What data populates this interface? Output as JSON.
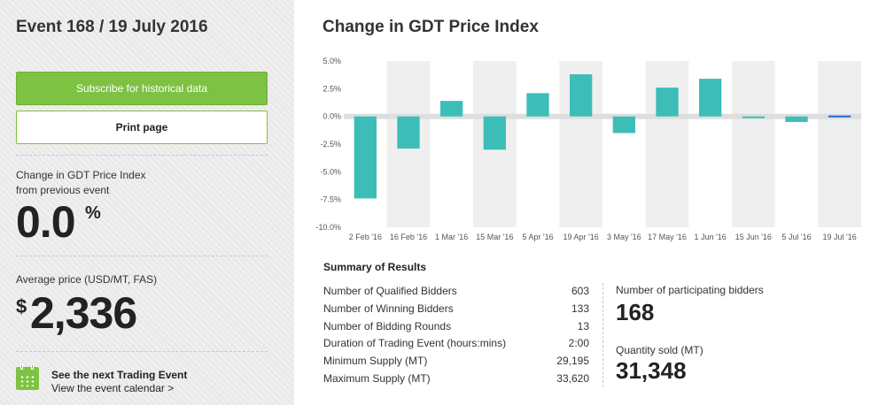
{
  "event": {
    "title": "Event 168 / 19 July 2016"
  },
  "buttons": {
    "subscribe": "Subscribe for historical data",
    "print": "Print page"
  },
  "change": {
    "label_line1": "Change in GDT Price Index",
    "label_line2": "from previous event",
    "value": "0.0",
    "unit": "%"
  },
  "average": {
    "label": "Average price (USD/MT, FAS)",
    "currency": "$",
    "value": "2,336"
  },
  "next_event": {
    "title": "See the next Trading Event",
    "link": "View the event calendar >",
    "icon": "calendar-icon"
  },
  "chart_data": {
    "type": "bar",
    "title": "Change in GDT Price Index",
    "categories": [
      "2 Feb '16",
      "16 Feb '16",
      "1 Mar '16",
      "15 Mar '16",
      "5 Apr '16",
      "19 Apr '16",
      "3 May '16",
      "17 May '16",
      "1 Jun '16",
      "15 Jun '16",
      "5 Jul '16",
      "19 Jul '16"
    ],
    "values": [
      -7.4,
      -2.9,
      1.4,
      -3.0,
      2.1,
      3.8,
      -1.5,
      2.6,
      3.4,
      -0.1,
      -0.5,
      0.0
    ],
    "ylim": [
      -10,
      5
    ],
    "yticks": [
      "5.0%",
      "2.5%",
      "0.0%",
      "-2.5%",
      "-5.0%",
      "-7.5%",
      "-10.0%"
    ],
    "bar_color": "#3dbdb8",
    "highlight_color": "#1f66c6",
    "band_color": "#efefef"
  },
  "summary": {
    "title": "Summary of Results",
    "rows": [
      {
        "label": "Number of Qualified Bidders",
        "value": "603"
      },
      {
        "label": "Number of Winning Bidders",
        "value": "133"
      },
      {
        "label": "Number of Bidding Rounds",
        "value": "13"
      },
      {
        "label": "Duration of Trading Event (hours:mins)",
        "value": "2:00"
      },
      {
        "label": "Minimum Supply (MT)",
        "value": "29,195"
      },
      {
        "label": "Maximum Supply (MT)",
        "value": "33,620"
      }
    ],
    "participating_label": "Number of participating bidders",
    "participating_value": "168",
    "quantity_label": "Quantity sold (MT)",
    "quantity_value": "31,348"
  }
}
